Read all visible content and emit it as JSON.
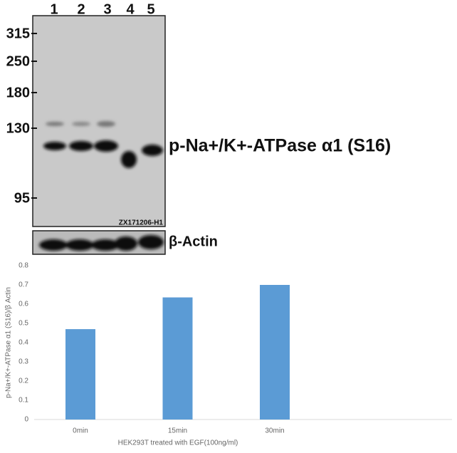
{
  "blot": {
    "lanes": [
      "1",
      "2",
      "3",
      "4",
      "5"
    ],
    "markers": [
      "315",
      "250",
      "180",
      "130",
      "95"
    ],
    "target_label": "p-Na+/K+-ATPase α1 (S16)",
    "control_label": "β-Actin",
    "code": "ZX171206-H1"
  },
  "chart_data": {
    "type": "bar",
    "y_label": "p-Na+/K+-ATPase α1 (S16)/β Actin",
    "x_label": "HEK293T treated with EGF(100ng/ml)",
    "categories": [
      "0min",
      "15min",
      "30min"
    ],
    "values": [
      0.47,
      0.635,
      0.7
    ],
    "color": "#5b9bd5",
    "ylim": [
      0,
      0.8
    ],
    "yticks": [
      0,
      0.1,
      0.2,
      0.3,
      0.4,
      0.5,
      0.6,
      0.7,
      0.8
    ],
    "grid": false
  }
}
